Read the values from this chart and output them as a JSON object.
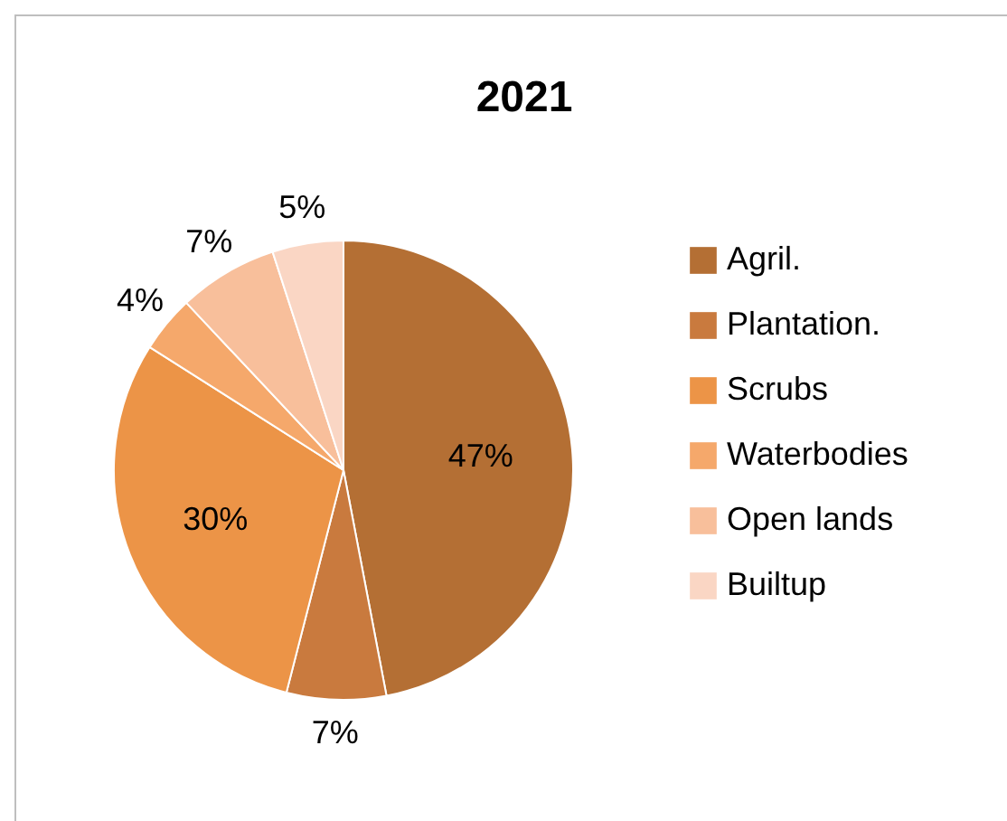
{
  "chart_data": {
    "type": "pie",
    "title": "2021",
    "categories": [
      "Agril.",
      "Plantation.",
      "Scrubs",
      "Waterbodies",
      "Open lands",
      "Builtup"
    ],
    "values": [
      47,
      7,
      30,
      4,
      7,
      5
    ],
    "value_labels": [
      "47%",
      "7%",
      "30%",
      "4%",
      "7%",
      "5%"
    ],
    "colors": [
      "#b46f34",
      "#c97a3e",
      "#ec9447",
      "#f5a86b",
      "#f8bf9b",
      "#fad6c4"
    ],
    "legend": "right"
  }
}
